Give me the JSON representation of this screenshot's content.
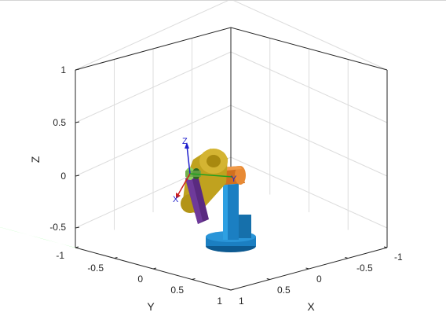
{
  "figure": {
    "background": "#ffffff",
    "axes_color": "#262626",
    "grid_color": "#dcdcdc"
  },
  "scene": {
    "floor_colors": [
      "#ffffff",
      "#80ff80"
    ],
    "robot_colors": {
      "base": "#1b7fc2",
      "link1": "#d0701f",
      "link2": "#c0a21f",
      "link3": "#5a2a80",
      "wrist": "#8ccf60"
    },
    "frame_labels": {
      "x": "X",
      "y": "Y",
      "z": "Z"
    },
    "frame_colors": {
      "x": "#cc2020",
      "y": "#20a020",
      "z": "#2020cc"
    }
  },
  "chart_data": {
    "type": "3d-scene",
    "title": "",
    "xlabel": "X",
    "ylabel": "Y",
    "zlabel": "Z",
    "xlim": [
      -1,
      1
    ],
    "ylim": [
      -1,
      1
    ],
    "zlim": [
      -0.7,
      1
    ],
    "x_ticks": [
      "-1",
      "-0.5",
      "0",
      "0.5",
      "1"
    ],
    "y_ticks": [
      "-1",
      "-0.5",
      "0",
      "0.5",
      "1"
    ],
    "z_ticks": [
      "-0.5",
      "0",
      "0.5",
      "1"
    ],
    "grid": true,
    "box": true,
    "floor": "checkerboard"
  }
}
